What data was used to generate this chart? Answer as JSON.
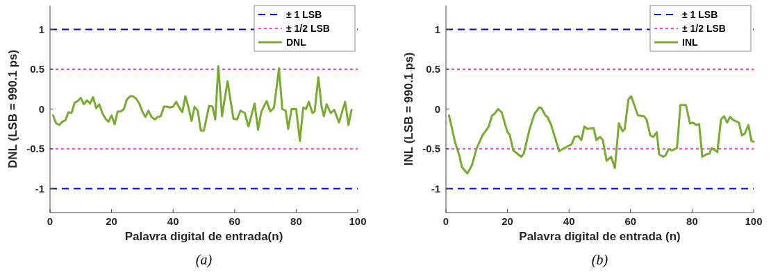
{
  "chart_data": [
    {
      "type": "line",
      "xlabel": "Palavra digital de entrada(n)",
      "ylabel": "DNL (LSB = 990.1 ps)",
      "xlim": [
        0,
        100
      ],
      "ylim": [
        -1.3,
        1.3
      ],
      "xticks": [
        0,
        20,
        40,
        60,
        80,
        100
      ],
      "yticks": [
        -1,
        -0.5,
        0,
        0.5,
        1
      ],
      "grid": false,
      "legend": "top right",
      "marker": "none",
      "line_style": "solid",
      "ref_lines": [
        {
          "axis": "y",
          "value": 1,
          "label": "± 1 LSB",
          "color": "#0000cc",
          "line_style": "dashed"
        },
        {
          "axis": "y",
          "value": -1,
          "color": "#0000cc",
          "line_style": "dashed"
        },
        {
          "axis": "y",
          "value": 0.5,
          "label": "± 1/2 LSB",
          "color": "#ee44ee",
          "line_style": "dotted"
        },
        {
          "axis": "y",
          "value": -0.5,
          "color": "#ee44ee",
          "line_style": "dotted"
        }
      ],
      "annotations": [
        "(a)"
      ],
      "series": [
        {
          "name": "DNL",
          "color": "#77ac30",
          "x": [
            1,
            2,
            3,
            4,
            5,
            6,
            7,
            8,
            9,
            10,
            11,
            12,
            13,
            14,
            15,
            16,
            17,
            18,
            19,
            20,
            21,
            22,
            23,
            24,
            25,
            26,
            27,
            28,
            29,
            30,
            31,
            32,
            33,
            34,
            35,
            36,
            37,
            38,
            39,
            40,
            41,
            42,
            43,
            44,
            45,
            46,
            47,
            48,
            49,
            50,
            51.7,
            52.8,
            53.7,
            54.7,
            55.9,
            57.7,
            59.6,
            60.8,
            61.9,
            63.3,
            64.5,
            66.5,
            67.6,
            68.7,
            70.4,
            71.6,
            72.8,
            74.4,
            75.5,
            76.6,
            77.4,
            78.5,
            80,
            81.2,
            82.3,
            83.2,
            84.1,
            85.3,
            86,
            87.2,
            88.3,
            89,
            89.9,
            91.2,
            92.4,
            93.9,
            95.9,
            97,
            98
          ],
          "values": [
            -0.08,
            -0.18,
            -0.2,
            -0.16,
            -0.14,
            -0.04,
            -0.05,
            0.08,
            0.1,
            0.14,
            0.06,
            0.11,
            0.07,
            0.15,
            0.01,
            0.06,
            -0.05,
            -0.12,
            -0.16,
            -0.08,
            -0.19,
            -0.03,
            -0.03,
            0,
            0.12,
            0.16,
            0.16,
            0.13,
            0.07,
            -0.03,
            -0.1,
            -0.02,
            -0.1,
            -0.13,
            -0.1,
            -0.09,
            0.03,
            0.03,
            0.02,
            0.03,
            0.09,
            0.02,
            -0.04,
            0.16,
            0.02,
            -0.15,
            0.03,
            -0.02,
            -0.27,
            -0.27,
            0.04,
            0.03,
            -0.13,
            0.54,
            -0.09,
            0.35,
            -0.12,
            -0.13,
            -0.02,
            -0.05,
            -0.22,
            0.07,
            -0.26,
            -0.03,
            0.1,
            -0.03,
            0.02,
            0.51,
            0,
            -0.02,
            -0.25,
            0,
            0,
            -0.4,
            0.02,
            0,
            0.09,
            -0.05,
            -0.03,
            0.4,
            0.02,
            -0.09,
            0.06,
            -0.05,
            -0.01,
            -0.17,
            0.09,
            -0.2,
            -0.01
          ]
        }
      ]
    },
    {
      "type": "line",
      "xlabel": "Palavra digital de entrada (n)",
      "ylabel": "INL (LSB = 990.1 ps)",
      "xlim": [
        0,
        100
      ],
      "ylim": [
        -1.3,
        1.3
      ],
      "xticks": [
        0,
        20,
        40,
        60,
        80,
        100
      ],
      "yticks": [
        -1,
        -0.5,
        0,
        0.5,
        1
      ],
      "grid": false,
      "legend": "top right",
      "marker": "none",
      "line_style": "solid",
      "ref_lines": [
        {
          "axis": "y",
          "value": 1,
          "label": "± 1 LSB",
          "color": "#0000cc",
          "line_style": "dashed"
        },
        {
          "axis": "y",
          "value": -1,
          "color": "#0000cc",
          "line_style": "dashed"
        },
        {
          "axis": "y",
          "value": 0.5,
          "label": "± 1/2 LSB",
          "color": "#ee44ee",
          "line_style": "dotted"
        },
        {
          "axis": "y",
          "value": -0.5,
          "color": "#ee44ee",
          "line_style": "dotted"
        }
      ],
      "annotations": [
        "(b)"
      ],
      "series": [
        {
          "name": "INL",
          "color": "#77ac30",
          "x": [
            1,
            2,
            3,
            4.4,
            5.2,
            7,
            8.5,
            10,
            11.9,
            13.9,
            15,
            15.8,
            16.9,
            18.1,
            20,
            20.7,
            21.9,
            24.5,
            25.3,
            27.2,
            28.8,
            30.3,
            31.1,
            32.3,
            33,
            34.2,
            36.8,
            38,
            39.5,
            40.9,
            41.8,
            43,
            44,
            45,
            46,
            48,
            48.9,
            50.1,
            51,
            52.2,
            53.7,
            54.9,
            56.2,
            57.4,
            58.1,
            59.3,
            60.2,
            62.4,
            64.3,
            65.2,
            66.4,
            67.4,
            68.5,
            69.3,
            70.6,
            71.4,
            72.4,
            73.4,
            75.1,
            76.2,
            78,
            79.3,
            80.3,
            81.3,
            82.3,
            83.3,
            84.6,
            85.6,
            86.4,
            88.2,
            89.4,
            90.4,
            91.4,
            92.3,
            93.5,
            95.2,
            96.2,
            97.1,
            98.3,
            99.3,
            100
          ],
          "values": [
            -0.08,
            -0.25,
            -0.42,
            -0.59,
            -0.73,
            -0.81,
            -0.7,
            -0.49,
            -0.33,
            -0.22,
            -0.08,
            -0.06,
            0,
            -0.04,
            -0.29,
            -0.32,
            -0.52,
            -0.6,
            -0.56,
            -0.25,
            -0.06,
            0.02,
            0.01,
            -0.08,
            -0.1,
            -0.2,
            -0.53,
            -0.5,
            -0.47,
            -0.44,
            -0.35,
            -0.34,
            -0.39,
            -0.22,
            -0.25,
            -0.24,
            -0.39,
            -0.35,
            -0.39,
            -0.65,
            -0.6,
            -0.74,
            -0.18,
            -0.28,
            -0.25,
            0.12,
            0.16,
            -0.08,
            -0.09,
            -0.13,
            -0.33,
            -0.35,
            -0.29,
            -0.57,
            -0.6,
            -0.58,
            -0.5,
            -0.52,
            -0.49,
            0.05,
            0.05,
            -0.18,
            -0.17,
            -0.2,
            -0.19,
            -0.6,
            -0.57,
            -0.56,
            -0.49,
            -0.54,
            -0.13,
            -0.09,
            -0.17,
            -0.1,
            -0.14,
            -0.17,
            -0.33,
            -0.31,
            -0.2,
            -0.4,
            -0.41
          ]
        }
      ]
    }
  ]
}
